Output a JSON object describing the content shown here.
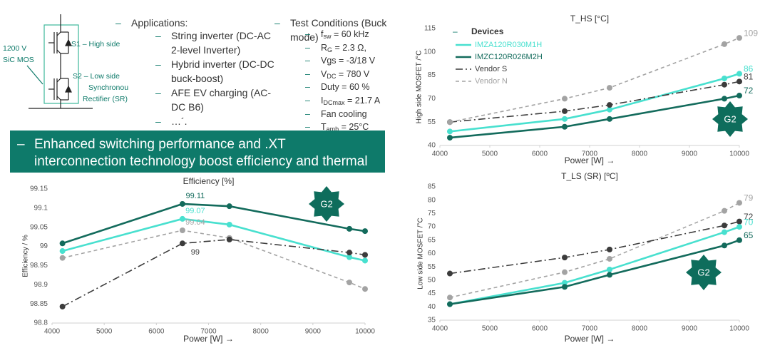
{
  "bullet": "–",
  "circuit": {
    "voltage_label": [
      "1200 V",
      "SiC MOS"
    ],
    "s1_label": "S1 – High side",
    "s2_label": [
      "S2 –  Low side",
      "Synchronous",
      "Rectifier  (SR)"
    ]
  },
  "applications": {
    "heading": "Applications:",
    "items": [
      "String inverter (DC-AC 2-level Inverter)",
      "Hybrid inverter (DC-DC buck-boost)",
      "AFE EV charging (AC-DC B6)",
      "…´."
    ]
  },
  "test_conditions": {
    "heading": "Test Conditions (Buck mode)",
    "items": [
      {
        "symbol": "f",
        "sub": "sw",
        "text": " = 60 kHz"
      },
      {
        "symbol": "R",
        "sub": "G",
        "text": " = 2.3 Ω,"
      },
      {
        "text": "Vgs = -3/18 V"
      },
      {
        "symbol": "V",
        "sub": "DC",
        "text": " = 780 V"
      },
      {
        "text": "Duty = 60 %"
      },
      {
        "symbol": "I",
        "sub": "DCmax",
        "text": " = 21.7 A"
      },
      {
        "text": "Fan cooling"
      },
      {
        "symbol": "T",
        "sub": "amb",
        "text": " = 25°C"
      }
    ]
  },
  "banner": "Enhanced switching performance and .XT interconnection technology boost efficiency and thermal performance",
  "chart_data": [
    {
      "type": "line",
      "title": "T_HS [°C]",
      "xlabel": "Power [W] →",
      "ylabel": "High side MOSFET /°C",
      "badge": "G2",
      "x": [
        4200,
        6500,
        7400,
        9700,
        10000
      ],
      "xlim": [
        4000,
        10000
      ],
      "xticks": [
        4000,
        5000,
        6000,
        7000,
        8000,
        9000,
        10000
      ],
      "ylim": [
        40,
        115
      ],
      "yticks": [
        40,
        55,
        70,
        85,
        100,
        115
      ],
      "grid": false,
      "data_labels": "last",
      "legend": {
        "title": "Devices",
        "position": "upper left"
      },
      "series": [
        {
          "name": "IMZA120R030M1H",
          "color": "#48e0cf",
          "style": "solid",
          "values": [
            49,
            57,
            63,
            83,
            86
          ]
        },
        {
          "name": "IMZC120R026M2H",
          "color": "#136b5c",
          "style": "solid",
          "values": [
            45,
            52,
            57,
            70,
            72
          ]
        },
        {
          "name": "Vendor S",
          "color": "#3c3c3c",
          "style": "dashdot",
          "values": [
            55,
            62,
            66,
            79,
            81
          ]
        },
        {
          "name": "Vendor N",
          "color": "#a3a3a3",
          "style": "dashed",
          "values": [
            55,
            70,
            77,
            105,
            109
          ]
        }
      ]
    },
    {
      "type": "line",
      "title": "Efficiency [%]",
      "xlabel": "Power [W] →",
      "ylabel": "Efficiency / %",
      "badge": "G2",
      "x": [
        4200,
        6500,
        7400,
        9700,
        10000
      ],
      "xlim": [
        4000,
        10000
      ],
      "xticks": [
        4000,
        5000,
        6000,
        7000,
        8000,
        9000,
        10000
      ],
      "ylim": [
        98.8,
        99.15
      ],
      "yticks": [
        98.8,
        98.85,
        98.9,
        98.95,
        99,
        99.05,
        99.1,
        99.15
      ],
      "grid": false,
      "series": [
        {
          "color": "#136b5c",
          "style": "solid",
          "values": [
            99.008,
            99.111,
            99.105,
            99.046,
            99.04
          ],
          "value_labels": [
            null,
            "99.11",
            null,
            null,
            null
          ]
        },
        {
          "color": "#48e0cf",
          "style": "solid",
          "values": [
            98.988,
            99.072,
            99.057,
            98.972,
            98.963
          ],
          "value_labels": [
            null,
            "99.07",
            null,
            null,
            null
          ]
        },
        {
          "color": "#a3a3a3",
          "style": "dashed",
          "values": [
            98.97,
            99.042,
            99.022,
            98.906,
            98.889
          ],
          "value_labels": [
            null,
            "99.04",
            null,
            null,
            null
          ]
        },
        {
          "color": "#3c3c3c",
          "style": "dashdot",
          "values": [
            98.843,
            99.008,
            99.018,
            98.984,
            98.978
          ],
          "value_labels": [
            null,
            "99",
            null,
            null,
            null
          ]
        }
      ]
    },
    {
      "type": "line",
      "title": "T_LS (SR) [ºC]",
      "xlabel": "Power [W] →",
      "ylabel": "Low side MOSFET /°C",
      "badge": "G2",
      "x": [
        4200,
        6500,
        7400,
        9700,
        10000
      ],
      "xlim": [
        4000,
        10000
      ],
      "xticks": [
        4000,
        5000,
        6000,
        7000,
        8000,
        9000,
        10000
      ],
      "ylim": [
        35,
        85
      ],
      "yticks": [
        35,
        40,
        45,
        50,
        55,
        60,
        65,
        70,
        75,
        80,
        85
      ],
      "grid": false,
      "data_labels": "last",
      "series": [
        {
          "color": "#a3a3a3",
          "style": "dashed",
          "values": [
            43.5,
            53,
            58,
            76,
            79
          ]
        },
        {
          "color": "#3c3c3c",
          "style": "dashdot",
          "values": [
            52.5,
            58.5,
            61.5,
            70.5,
            72
          ]
        },
        {
          "color": "#48e0cf",
          "style": "solid",
          "values": [
            41,
            49,
            54,
            68,
            70
          ]
        },
        {
          "color": "#136b5c",
          "style": "solid",
          "values": [
            41,
            47.5,
            52,
            63,
            65
          ]
        }
      ]
    }
  ]
}
